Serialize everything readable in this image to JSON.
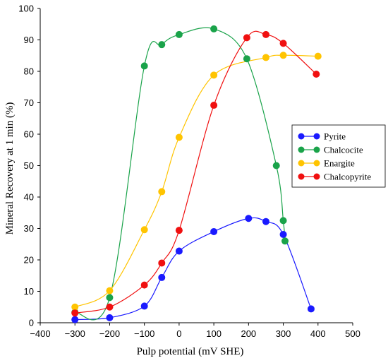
{
  "chart_data": {
    "type": "line",
    "xlabel": "Pulp potential (mV SHE)",
    "ylabel": "Mineral Recovery at 1 min (%)",
    "xlim": [
      -400,
      500
    ],
    "ylim": [
      0,
      100
    ],
    "x_ticks": [
      -400,
      -300,
      -200,
      -100,
      0,
      100,
      200,
      300,
      400,
      500
    ],
    "x_tick_labels": [
      "−400",
      "−300",
      "−200",
      "−100",
      "0",
      "100",
      "200",
      "300",
      "400",
      "500"
    ],
    "y_ticks": [
      0,
      10,
      20,
      30,
      40,
      50,
      60,
      70,
      80,
      90,
      100
    ],
    "y_tick_labels": [
      "0",
      "10",
      "20",
      "30",
      "40",
      "50",
      "60",
      "70",
      "80",
      "90",
      "100"
    ],
    "grid": false,
    "legend_position": "right",
    "series": [
      {
        "name": "Pyrite",
        "color": "#1a1aff",
        "x": [
          -300,
          -200,
          -100,
          -50,
          0,
          100,
          200,
          250,
          300,
          380
        ],
        "y": [
          1,
          1.6,
          5.3,
          14.4,
          22.8,
          29,
          33.2,
          32.2,
          28.1,
          4.4
        ]
      },
      {
        "name": "Chalcocite",
        "color": "#1aa34a",
        "x": [
          -300,
          -200,
          -100,
          -50,
          0,
          100,
          195,
          280,
          300,
          305
        ],
        "y": [
          3.3,
          8,
          81.7,
          88.5,
          91.7,
          93.5,
          84,
          50,
          32.5,
          26
        ]
      },
      {
        "name": "Enargite",
        "color": "#ffc400",
        "x": [
          -300,
          -200,
          -100,
          -50,
          0,
          100,
          250,
          300,
          400
        ],
        "y": [
          5,
          10.2,
          29.6,
          41.7,
          59,
          78.8,
          84.4,
          85.1,
          84.8
        ]
      },
      {
        "name": "Chalcopyrite",
        "color": "#f01010",
        "x": [
          -300,
          -200,
          -100,
          -50,
          0,
          100,
          195,
          250,
          300,
          395
        ],
        "y": [
          3.1,
          5,
          12,
          19,
          29.4,
          69.2,
          90.7,
          91.7,
          88.9,
          79.1
        ]
      }
    ]
  }
}
